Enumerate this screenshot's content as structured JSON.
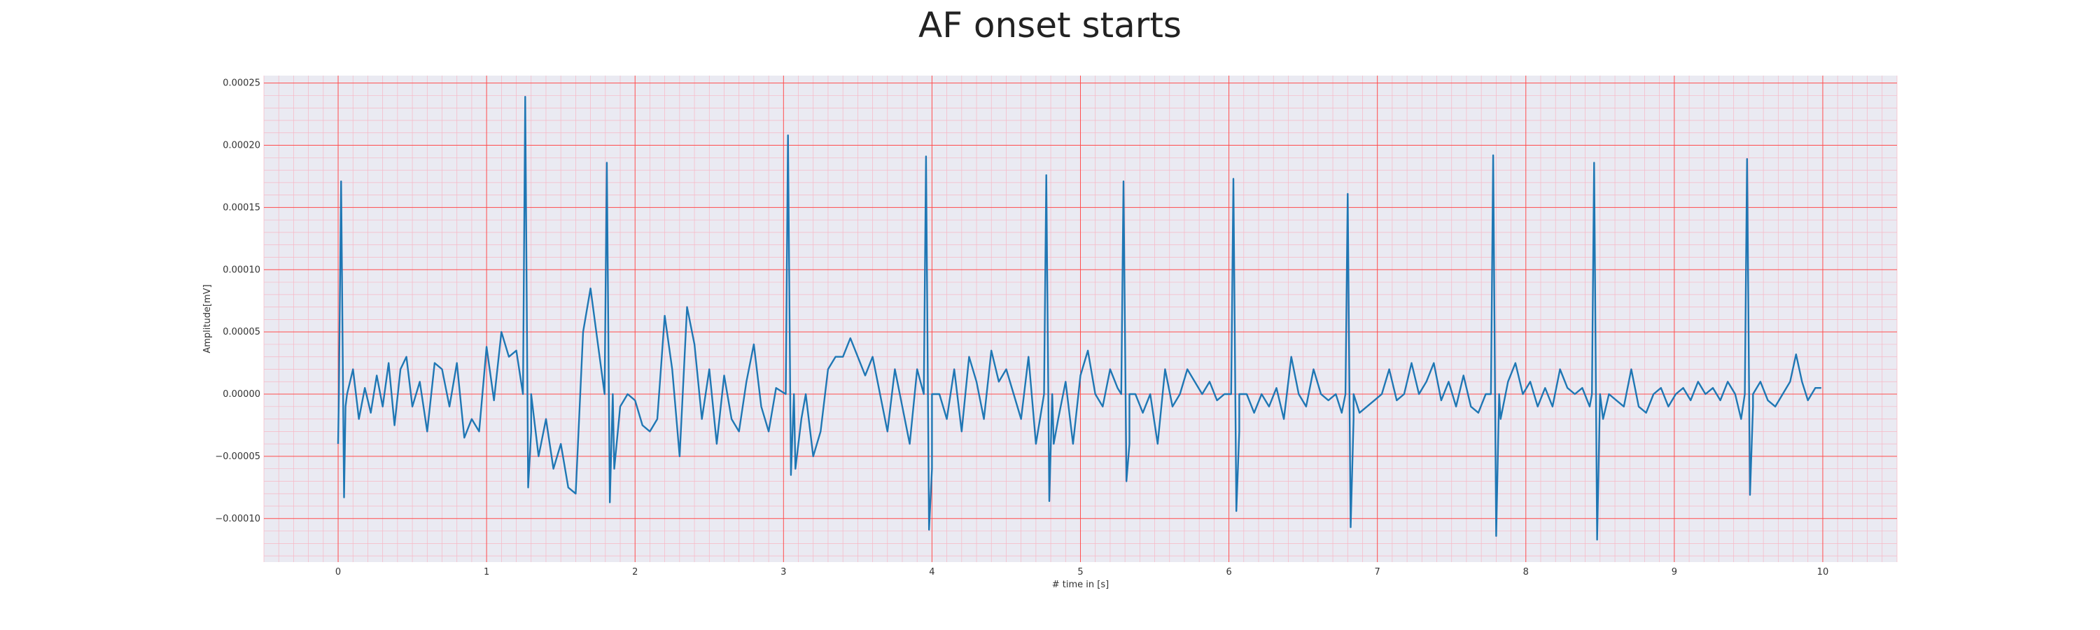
{
  "chart_data": {
    "type": "line",
    "title": "AF onset starts",
    "xlabel": "# time in [s]",
    "ylabel": "Amplitude[mV]",
    "xlim": [
      -0.5,
      10.5
    ],
    "ylim": [
      -0.000135,
      0.000256
    ],
    "xticks": [
      0,
      1,
      2,
      3,
      4,
      5,
      6,
      7,
      8,
      9,
      10
    ],
    "xtick_labels": [
      "0",
      "1",
      "2",
      "3",
      "4",
      "5",
      "6",
      "7",
      "8",
      "9",
      "10"
    ],
    "yticks": [
      -0.0001,
      -5e-05,
      0,
      5e-05,
      0.0001,
      0.00015,
      0.0002,
      0.00025
    ],
    "ytick_labels": [
      "−0.00010",
      "−0.00005",
      "0.00000",
      "0.00005",
      "0.00010",
      "0.00015",
      "0.00020",
      "0.00025"
    ],
    "grid": true,
    "grid_color": "#ff4d4d",
    "minor_grid_color": "#f7b7c5",
    "background": "#eaeaf2",
    "series": [
      {
        "color": "#1f77b4",
        "r_peaks": [
          [
            0.02,
            0.000171,
            -8.3e-05
          ],
          [
            1.26,
            0.000239,
            -7.5e-05
          ],
          [
            1.81,
            0.000186,
            -8.7e-05
          ],
          [
            3.03,
            0.000208,
            -6.5e-05
          ],
          [
            3.96,
            0.000191,
            -0.000109
          ],
          [
            4.77,
            0.000176,
            -8.6e-05
          ],
          [
            5.29,
            0.000171,
            -7e-05
          ],
          [
            6.03,
            0.000173,
            -9.4e-05
          ],
          [
            6.8,
            0.000161,
            -0.000107
          ],
          [
            7.78,
            0.000192,
            -0.000114
          ],
          [
            8.46,
            0.000186,
            -0.000117
          ],
          [
            9.49,
            0.000189,
            -8.1e-05
          ]
        ],
        "baseline": [
          [
            0.0,
            -4e-05
          ],
          [
            0.05,
            -1e-05
          ],
          [
            0.1,
            2e-05
          ],
          [
            0.14,
            -2e-05
          ],
          [
            0.18,
            5e-06
          ],
          [
            0.22,
            -1.5e-05
          ],
          [
            0.26,
            1.5e-05
          ],
          [
            0.3,
            -1e-05
          ],
          [
            0.34,
            2.5e-05
          ],
          [
            0.38,
            -2.5e-05
          ],
          [
            0.42,
            2e-05
          ],
          [
            0.46,
            3e-05
          ],
          [
            0.5,
            -1e-05
          ],
          [
            0.55,
            1e-05
          ],
          [
            0.6,
            -3e-05
          ],
          [
            0.65,
            2.5e-05
          ],
          [
            0.7,
            2e-05
          ],
          [
            0.75,
            -1e-05
          ],
          [
            0.8,
            2.5e-05
          ],
          [
            0.85,
            -3.5e-05
          ],
          [
            0.9,
            -2e-05
          ],
          [
            0.95,
            -3e-05
          ],
          [
            1.0,
            3.8e-05
          ],
          [
            1.05,
            -5e-06
          ],
          [
            1.1,
            5e-05
          ],
          [
            1.15,
            3e-05
          ],
          [
            1.2,
            3.5e-05
          ],
          [
            1.3,
            -3e-05
          ],
          [
            1.35,
            -5e-05
          ],
          [
            1.4,
            -2e-05
          ],
          [
            1.45,
            -6e-05
          ],
          [
            1.5,
            -4e-05
          ],
          [
            1.55,
            -7.5e-05
          ],
          [
            1.6,
            -8e-05
          ],
          [
            1.65,
            5e-05
          ],
          [
            1.7,
            8.5e-05
          ],
          [
            1.75,
            4e-05
          ],
          [
            1.86,
            -6e-05
          ],
          [
            1.9,
            -1e-05
          ],
          [
            1.95,
            0.0
          ],
          [
            2.0,
            -5e-06
          ],
          [
            2.05,
            -2.5e-05
          ],
          [
            2.1,
            -3e-05
          ],
          [
            2.15,
            -2e-05
          ],
          [
            2.2,
            6.3e-05
          ],
          [
            2.25,
            2e-05
          ],
          [
            2.3,
            -5e-05
          ],
          [
            2.35,
            7e-05
          ],
          [
            2.4,
            4e-05
          ],
          [
            2.45,
            -2e-05
          ],
          [
            2.5,
            2e-05
          ],
          [
            2.55,
            -4e-05
          ],
          [
            2.6,
            1.5e-05
          ],
          [
            2.65,
            -2e-05
          ],
          [
            2.7,
            -3e-05
          ],
          [
            2.75,
            1e-05
          ],
          [
            2.8,
            4e-05
          ],
          [
            2.85,
            -1e-05
          ],
          [
            2.9,
            -3e-05
          ],
          [
            2.95,
            5e-06
          ],
          [
            3.08,
            -6e-05
          ],
          [
            3.12,
            -2e-05
          ],
          [
            3.15,
            0.0
          ],
          [
            3.2,
            -5e-05
          ],
          [
            3.25,
            -3e-05
          ],
          [
            3.3,
            2e-05
          ],
          [
            3.35,
            3e-05
          ],
          [
            3.4,
            3e-05
          ],
          [
            3.45,
            4.5e-05
          ],
          [
            3.5,
            3e-05
          ],
          [
            3.55,
            1.5e-05
          ],
          [
            3.6,
            3e-05
          ],
          [
            3.65,
            0.0
          ],
          [
            3.7,
            -3e-05
          ],
          [
            3.75,
            2e-05
          ],
          [
            3.8,
            -1e-05
          ],
          [
            3.85,
            -4e-05
          ],
          [
            3.9,
            2e-05
          ],
          [
            4.0,
            -6e-05
          ],
          [
            4.05,
            0.0
          ],
          [
            4.1,
            -2e-05
          ],
          [
            4.15,
            2e-05
          ],
          [
            4.2,
            -3e-05
          ],
          [
            4.25,
            3e-05
          ],
          [
            4.3,
            1e-05
          ],
          [
            4.35,
            -2e-05
          ],
          [
            4.4,
            3.5e-05
          ],
          [
            4.45,
            1e-05
          ],
          [
            4.5,
            2e-05
          ],
          [
            4.55,
            0.0
          ],
          [
            4.6,
            -2e-05
          ],
          [
            4.65,
            3e-05
          ],
          [
            4.7,
            -4e-05
          ],
          [
            4.82,
            -4e-05
          ],
          [
            4.85,
            -2e-05
          ],
          [
            4.9,
            1e-05
          ],
          [
            4.95,
            -4e-05
          ],
          [
            5.0,
            1.5e-05
          ],
          [
            5.05,
            3.5e-05
          ],
          [
            5.1,
            0.0
          ],
          [
            5.15,
            -1e-05
          ],
          [
            5.2,
            2e-05
          ],
          [
            5.25,
            5e-06
          ],
          [
            5.33,
            -4e-05
          ],
          [
            5.37,
            0.0
          ],
          [
            5.42,
            -1.5e-05
          ],
          [
            5.47,
            0.0
          ],
          [
            5.52,
            -4e-05
          ],
          [
            5.57,
            2e-05
          ],
          [
            5.62,
            -1e-05
          ],
          [
            5.67,
            0.0
          ],
          [
            5.72,
            2e-05
          ],
          [
            5.77,
            1e-05
          ],
          [
            5.82,
            0.0
          ],
          [
            5.87,
            1e-05
          ],
          [
            5.92,
            -5e-06
          ],
          [
            5.97,
            0.0
          ],
          [
            6.07,
            -3e-05
          ],
          [
            6.12,
            0.0
          ],
          [
            6.17,
            -1.5e-05
          ],
          [
            6.22,
            0.0
          ],
          [
            6.27,
            -1e-05
          ],
          [
            6.32,
            5e-06
          ],
          [
            6.37,
            -2e-05
          ],
          [
            6.42,
            3e-05
          ],
          [
            6.47,
            0.0
          ],
          [
            6.52,
            -1e-05
          ],
          [
            6.57,
            2e-05
          ],
          [
            6.62,
            0.0
          ],
          [
            6.67,
            -5e-06
          ],
          [
            6.72,
            0.0
          ],
          [
            6.76,
            -1.5e-05
          ],
          [
            6.84,
            -2e-05
          ],
          [
            6.88,
            -1.5e-05
          ],
          [
            6.93,
            -1e-05
          ],
          [
            6.98,
            -5e-06
          ],
          [
            7.03,
            0.0
          ],
          [
            7.08,
            2e-05
          ],
          [
            7.13,
            -5e-06
          ],
          [
            7.18,
            0.0
          ],
          [
            7.23,
            2.5e-05
          ],
          [
            7.28,
            0.0
          ],
          [
            7.33,
            1e-05
          ],
          [
            7.38,
            2.5e-05
          ],
          [
            7.43,
            -5e-06
          ],
          [
            7.48,
            1e-05
          ],
          [
            7.53,
            -1e-05
          ],
          [
            7.58,
            1.5e-05
          ],
          [
            7.63,
            -1e-05
          ],
          [
            7.68,
            -1.5e-05
          ],
          [
            7.73,
            0.0
          ],
          [
            7.83,
            -2e-05
          ],
          [
            7.88,
            1e-05
          ],
          [
            7.93,
            2.5e-05
          ],
          [
            7.98,
            0.0
          ],
          [
            8.03,
            1e-05
          ],
          [
            8.08,
            -1e-05
          ],
          [
            8.13,
            5e-06
          ],
          [
            8.18,
            -1e-05
          ],
          [
            8.23,
            2e-05
          ],
          [
            8.28,
            5e-06
          ],
          [
            8.33,
            0.0
          ],
          [
            8.38,
            5e-06
          ],
          [
            8.43,
            -1e-05
          ],
          [
            8.52,
            -2e-05
          ],
          [
            8.56,
            0.0
          ],
          [
            8.61,
            -5e-06
          ],
          [
            8.66,
            -1e-05
          ],
          [
            8.71,
            2e-05
          ],
          [
            8.76,
            -1e-05
          ],
          [
            8.81,
            -1.5e-05
          ],
          [
            8.86,
            0.0
          ],
          [
            8.91,
            5e-06
          ],
          [
            8.96,
            -1e-05
          ],
          [
            9.01,
            0.0
          ],
          [
            9.06,
            5e-06
          ],
          [
            9.11,
            -5e-06
          ],
          [
            9.16,
            1e-05
          ],
          [
            9.21,
            0.0
          ],
          [
            9.26,
            5e-06
          ],
          [
            9.31,
            -5e-06
          ],
          [
            9.36,
            1e-05
          ],
          [
            9.41,
            0.0
          ],
          [
            9.45,
            -2e-05
          ],
          [
            9.53,
            -1e-05
          ],
          [
            9.58,
            1e-05
          ],
          [
            9.63,
            -5e-06
          ],
          [
            9.68,
            -1e-05
          ],
          [
            9.73,
            0.0
          ],
          [
            9.78,
            1e-05
          ],
          [
            9.82,
            3.2e-05
          ],
          [
            9.86,
            1e-05
          ],
          [
            9.9,
            -5e-06
          ],
          [
            9.95,
            5e-06
          ],
          [
            9.99,
            5e-06
          ]
        ]
      }
    ]
  }
}
